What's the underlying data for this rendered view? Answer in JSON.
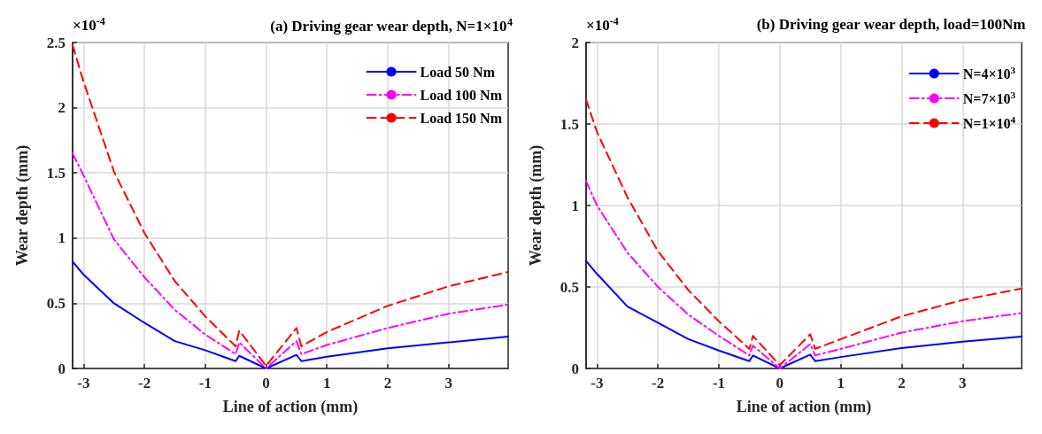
{
  "chart_data": [
    {
      "type": "line",
      "title": "(a) Driving gear wear depth, N=1×10$^{4}$",
      "xlabel": "Line of action (mm)",
      "ylabel": "Wear depth (mm)",
      "annotations": [
        "×10$^{-4}$"
      ],
      "xlim": [
        -3.18,
        3.98
      ],
      "ylim": [
        0,
        2.5
      ],
      "xticks": [
        -3,
        -2,
        -1,
        0,
        1,
        2,
        3
      ],
      "yticks": [
        0,
        0.5,
        1,
        1.5,
        2,
        2.5
      ],
      "grid": true,
      "legend": "top right",
      "marker": "none",
      "x": [
        -3.18,
        -3,
        -2.5,
        -2,
        -1.5,
        -1,
        -0.5,
        -0.44,
        0,
        0.5,
        0.58,
        1,
        2,
        3,
        3.98
      ],
      "series": [
        {
          "name": "Load 50 Nm",
          "color": "#0000ff",
          "line_style": "solid",
          "values": [
            0.82,
            0.72,
            0.5,
            0.35,
            0.21,
            0.14,
            0.056,
            0.097,
            0,
            0.104,
            0.056,
            0.09,
            0.155,
            0.2,
            0.245
          ]
        },
        {
          "name": "Load 100 Nm",
          "color": "#ff00ff",
          "line_style": "dashdot",
          "values": [
            1.65,
            1.48,
            0.99,
            0.7,
            0.45,
            0.26,
            0.11,
            0.2,
            0,
            0.21,
            0.11,
            0.18,
            0.31,
            0.42,
            0.49
          ]
        },
        {
          "name": "Load 150 Nm",
          "color": "#ff0000",
          "line_style": "dashed",
          "values": [
            2.48,
            2.2,
            1.51,
            1.04,
            0.67,
            0.4,
            0.17,
            0.29,
            0.02,
            0.31,
            0.17,
            0.28,
            0.48,
            0.63,
            0.74
          ]
        }
      ]
    },
    {
      "type": "line",
      "title": "(b) Driving gear wear depth, load=100Nm",
      "xlabel": "Line of action (mm)",
      "ylabel": "Wear depth (mm)",
      "annotations": [
        "×10$^{-4}$"
      ],
      "xlim": [
        -3.18,
        3.97
      ],
      "ylim": [
        0,
        2
      ],
      "xticks": [
        -3,
        -2,
        -1,
        0,
        1,
        2,
        3
      ],
      "yticks": [
        0,
        0.5,
        1,
        1.5,
        2
      ],
      "grid": true,
      "legend": "top right",
      "marker": "none",
      "x": [
        -3.18,
        -3,
        -2.5,
        -2,
        -1.5,
        -1,
        -0.5,
        -0.44,
        0,
        0.5,
        0.58,
        1,
        2,
        3,
        3.97
      ],
      "series": [
        {
          "name": "N=4×10$^{3}$",
          "color": "#0000ff",
          "line_style": "solid",
          "values": [
            0.66,
            0.58,
            0.38,
            0.28,
            0.18,
            0.11,
            0.045,
            0.08,
            0,
            0.085,
            0.045,
            0.07,
            0.125,
            0.165,
            0.195
          ]
        },
        {
          "name": "N=7×10$^{3}$",
          "color": "#ff00ff",
          "line_style": "dashdot",
          "values": [
            1.15,
            1.0,
            0.71,
            0.5,
            0.33,
            0.2,
            0.08,
            0.14,
            0,
            0.15,
            0.08,
            0.12,
            0.22,
            0.29,
            0.34
          ]
        },
        {
          "name": "N=1×10$^{4}$",
          "color": "#ff0000",
          "line_style": "dashed",
          "values": [
            1.65,
            1.45,
            1.05,
            0.72,
            0.48,
            0.29,
            0.12,
            0.2,
            0.02,
            0.21,
            0.12,
            0.18,
            0.32,
            0.42,
            0.49
          ]
        }
      ]
    }
  ]
}
